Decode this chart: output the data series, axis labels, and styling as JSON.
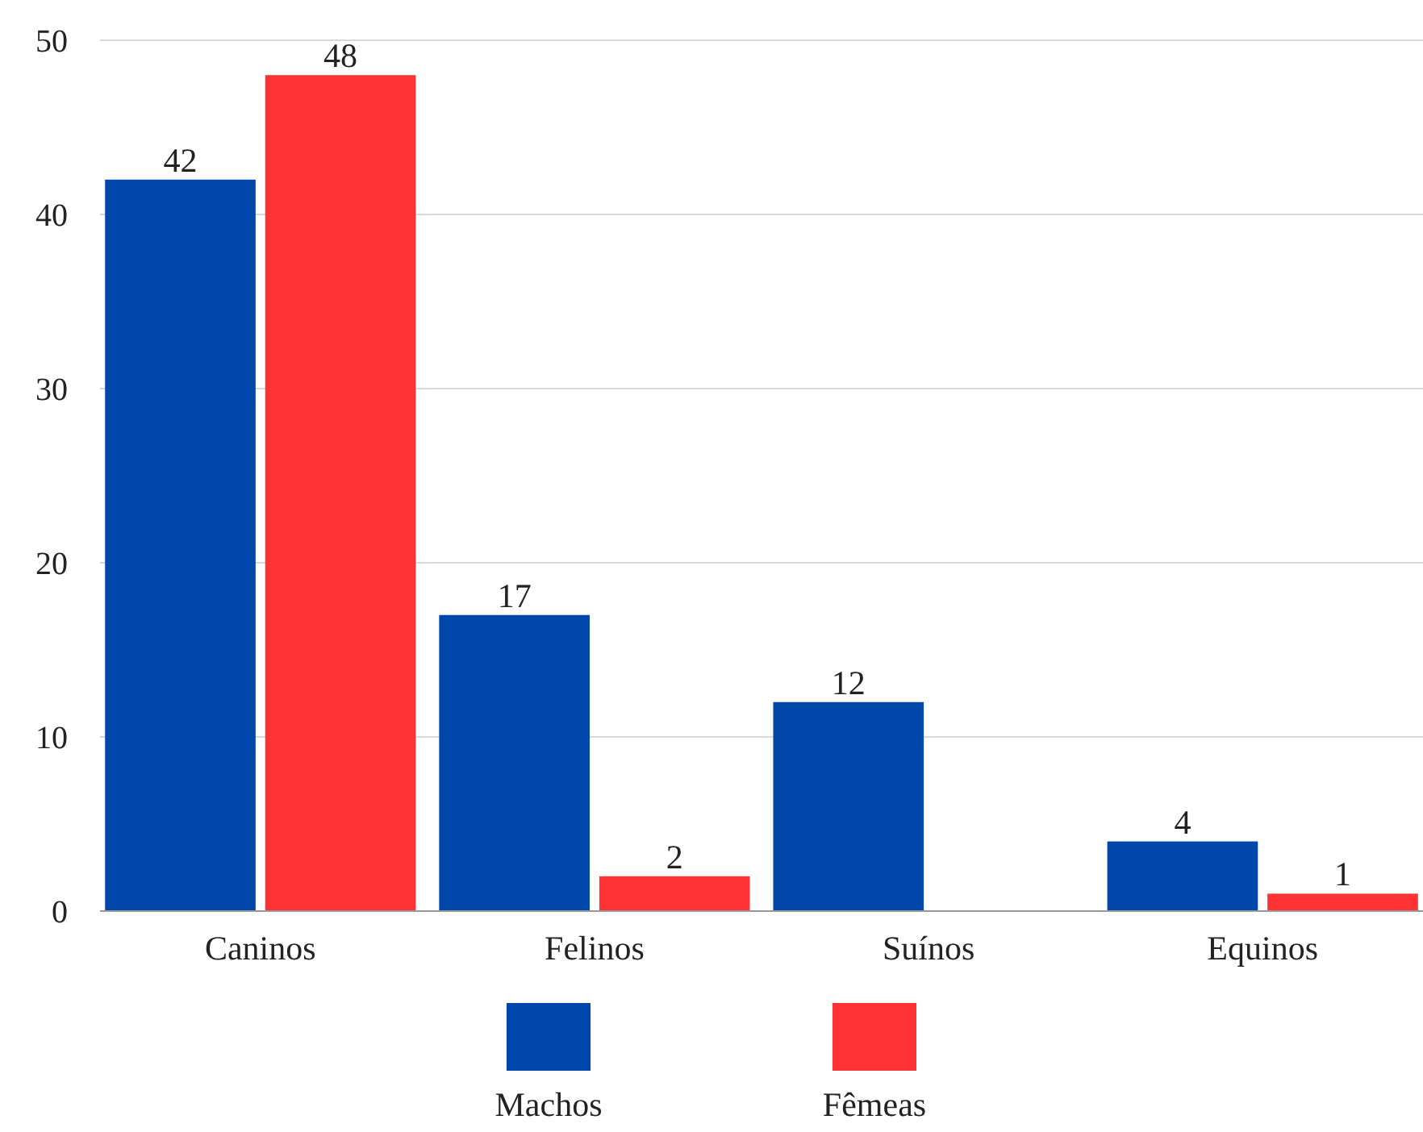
{
  "chart_data": {
    "type": "bar",
    "categories": [
      "Caninos",
      "Felinos",
      "Suínos",
      "Equinos"
    ],
    "series": [
      {
        "name": "Machos",
        "color": "#0047ab",
        "values": [
          42,
          17,
          12,
          4
        ]
      },
      {
        "name": "Fêmeas",
        "color": "#ff3333",
        "values": [
          48,
          2,
          null,
          1
        ]
      }
    ],
    "ylim": [
      0,
      50
    ],
    "yticks": [
      0,
      10,
      20,
      30,
      40,
      50
    ],
    "grid": "y",
    "legend": "bottom",
    "data_labels": true
  }
}
